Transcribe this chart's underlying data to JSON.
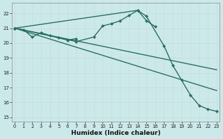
{
  "xlabel": "Humidex (Indice chaleur)",
  "xlim": [
    -0.3,
    23.3
  ],
  "ylim": [
    14.7,
    22.7
  ],
  "yticks": [
    15,
    16,
    17,
    18,
    19,
    20,
    21,
    22
  ],
  "xticks": [
    0,
    1,
    2,
    3,
    4,
    5,
    6,
    7,
    8,
    9,
    10,
    11,
    12,
    13,
    14,
    15,
    16,
    17,
    18,
    19,
    20,
    21,
    22,
    23
  ],
  "bg_color": "#cce9e9",
  "grid_color": "#b8d8d8",
  "line_color": "#2a6e65",
  "line1_x": [
    0,
    1,
    2,
    3,
    4,
    5,
    6,
    7
  ],
  "line1_y": [
    21.0,
    20.9,
    20.4,
    20.7,
    20.5,
    20.35,
    20.2,
    20.3
  ],
  "line2_x": [
    0,
    7,
    9,
    10,
    11,
    12,
    13,
    14,
    15,
    16
  ],
  "line2_y": [
    21.0,
    20.1,
    20.4,
    21.15,
    21.3,
    21.5,
    21.85,
    22.2,
    21.5,
    21.1
  ],
  "line3_x": [
    0,
    14,
    15,
    17,
    18,
    19,
    20,
    21,
    22,
    23
  ],
  "line3_y": [
    21.0,
    22.2,
    21.8,
    19.8,
    18.5,
    17.5,
    16.5,
    15.8,
    15.55,
    15.4
  ],
  "line4_x": [
    0,
    23
  ],
  "line4_y": [
    21.0,
    18.2
  ],
  "line5_x": [
    0,
    23
  ],
  "line5_y": [
    21.0,
    16.8
  ]
}
